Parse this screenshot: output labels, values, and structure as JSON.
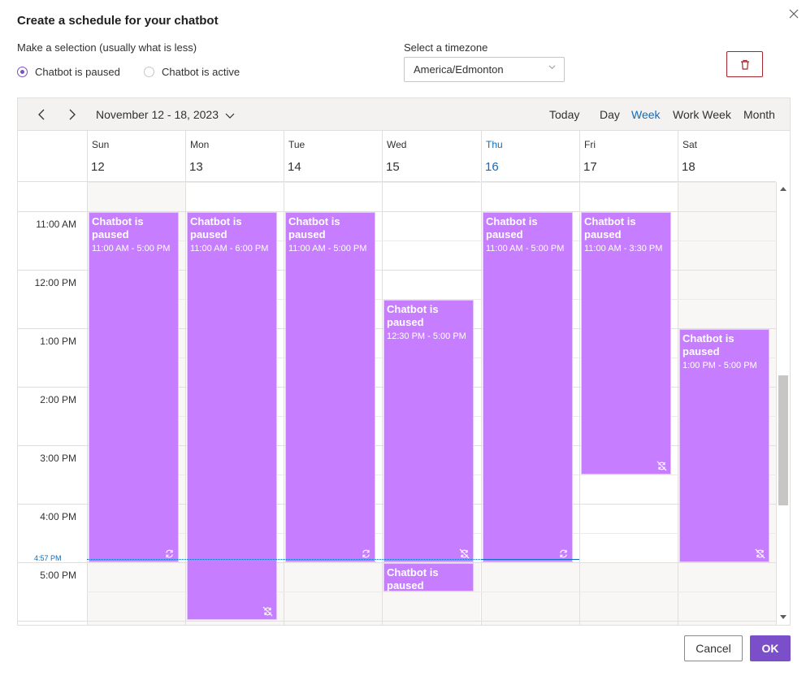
{
  "dialog": {
    "title": "Create a schedule for your chatbot",
    "close_icon": "close-icon"
  },
  "selection": {
    "label": "Make a selection (usually what is less)",
    "options": [
      {
        "label": "Chatbot is paused",
        "checked": true
      },
      {
        "label": "Chatbot is active",
        "checked": false
      }
    ]
  },
  "timezone": {
    "label": "Select a timezone",
    "value": "America/Edmonton"
  },
  "delete_icon": "trash-icon",
  "calendar": {
    "date_range": "November 12 - 18, 2023",
    "today_label": "Today",
    "views": [
      {
        "label": "Day",
        "active": false
      },
      {
        "label": "Week",
        "active": true
      },
      {
        "label": "Work Week",
        "active": false
      },
      {
        "label": "Month",
        "active": false
      }
    ],
    "days": [
      {
        "name": "Sun",
        "num": "12",
        "today": false
      },
      {
        "name": "Mon",
        "num": "13",
        "today": false
      },
      {
        "name": "Tue",
        "num": "14",
        "today": false
      },
      {
        "name": "Wed",
        "num": "15",
        "today": false
      },
      {
        "name": "Thu",
        "num": "16",
        "today": true
      },
      {
        "name": "Fri",
        "num": "17",
        "today": false
      },
      {
        "name": "Sat",
        "num": "18",
        "today": false
      }
    ],
    "time_labels": [
      "11:00 AM",
      "12:00 PM",
      "1:00 PM",
      "2:00 PM",
      "3:00 PM",
      "4:00 PM",
      "5:00 PM"
    ],
    "now_label": "4:57 PM",
    "events": [
      {
        "day": 0,
        "start": 11.0,
        "end": 17.0,
        "title": "Chatbot is paused",
        "time": "11:00 AM - 5:00 PM",
        "icon": "repeat-icon"
      },
      {
        "day": 1,
        "start": 11.0,
        "end": 18.0,
        "title": "Chatbot is paused",
        "time": "11:00 AM - 6:00 PM",
        "icon": "no-repeat-icon"
      },
      {
        "day": 2,
        "start": 11.0,
        "end": 17.0,
        "title": "Chatbot is paused",
        "time": "11:00 AM - 5:00 PM",
        "icon": "repeat-icon"
      },
      {
        "day": 3,
        "start": 12.5,
        "end": 17.0,
        "title": "Chatbot is paused",
        "time": "12:30 PM - 5:00 PM",
        "icon": "no-repeat-icon"
      },
      {
        "day": 3,
        "start": 17.0,
        "end": 17.5,
        "title": "Chatbot is paused",
        "time": "",
        "icon": ""
      },
      {
        "day": 4,
        "start": 11.0,
        "end": 17.0,
        "title": "Chatbot is paused",
        "time": "11:00 AM - 5:00 PM",
        "icon": "repeat-icon"
      },
      {
        "day": 5,
        "start": 11.0,
        "end": 15.5,
        "title": "Chatbot is paused",
        "time": "11:00 AM - 3:30 PM",
        "icon": "no-repeat-icon"
      },
      {
        "day": 6,
        "start": 13.0,
        "end": 17.0,
        "title": "Chatbot is paused",
        "time": "1:00 PM - 5:00 PM",
        "icon": "no-repeat-icon"
      }
    ]
  },
  "footer": {
    "cancel_label": "Cancel",
    "ok_label": "OK"
  },
  "colors": {
    "accent": "#7b4fc9",
    "event": "#c77dff",
    "today": "#0f6cbd",
    "delete_border": "#a4262c"
  }
}
